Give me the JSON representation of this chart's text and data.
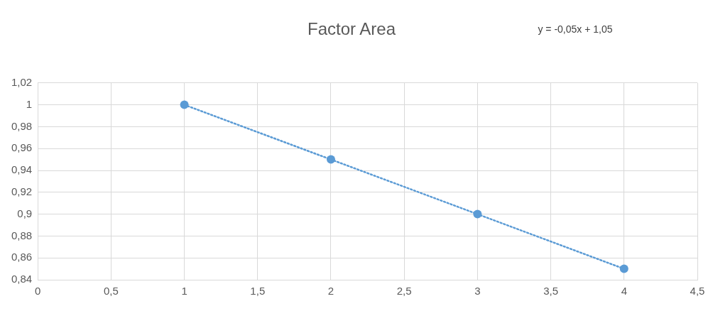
{
  "chart_data": {
    "type": "scatter",
    "title": "Factor Area",
    "annotations": [
      "y = -0,05x + 1,05"
    ],
    "xlim": [
      0,
      4.5
    ],
    "xticks": [
      0,
      {
        "value": 0.5,
        "label": "0,5"
      },
      1,
      {
        "value": 1.5,
        "label": "1,5"
      },
      2,
      {
        "value": 2.5,
        "label": "2,5"
      },
      3,
      {
        "value": 3.5,
        "label": "3,5"
      },
      4,
      {
        "value": 4.5,
        "label": "4,5"
      }
    ],
    "ylim": [
      0.84,
      1.02
    ],
    "yticks": [
      {
        "value": 0.84,
        "label": "0,84"
      },
      {
        "value": 0.86,
        "label": "0,86"
      },
      {
        "value": 0.88,
        "label": "0,88"
      },
      {
        "value": 0.9,
        "label": "0,9"
      },
      {
        "value": 0.92,
        "label": "0,92"
      },
      {
        "value": 0.94,
        "label": "0,94"
      },
      {
        "value": 0.96,
        "label": "0,96"
      },
      {
        "value": 0.98,
        "label": "0,98"
      },
      1,
      {
        "value": 1.02,
        "label": "1,02"
      }
    ],
    "grid": true,
    "legend": false,
    "marker": "circle",
    "series": [
      {
        "type": "scatter",
        "color": "#5b9bd5",
        "x": [
          1,
          2,
          3,
          4
        ],
        "values": [
          1,
          0.95,
          0.9,
          0.85
        ]
      },
      {
        "type": "line",
        "color": "#5b9bd5",
        "line_style": "dotted",
        "marker": "none",
        "x": [
          1,
          4
        ],
        "values": [
          1,
          0.85
        ]
      }
    ]
  }
}
